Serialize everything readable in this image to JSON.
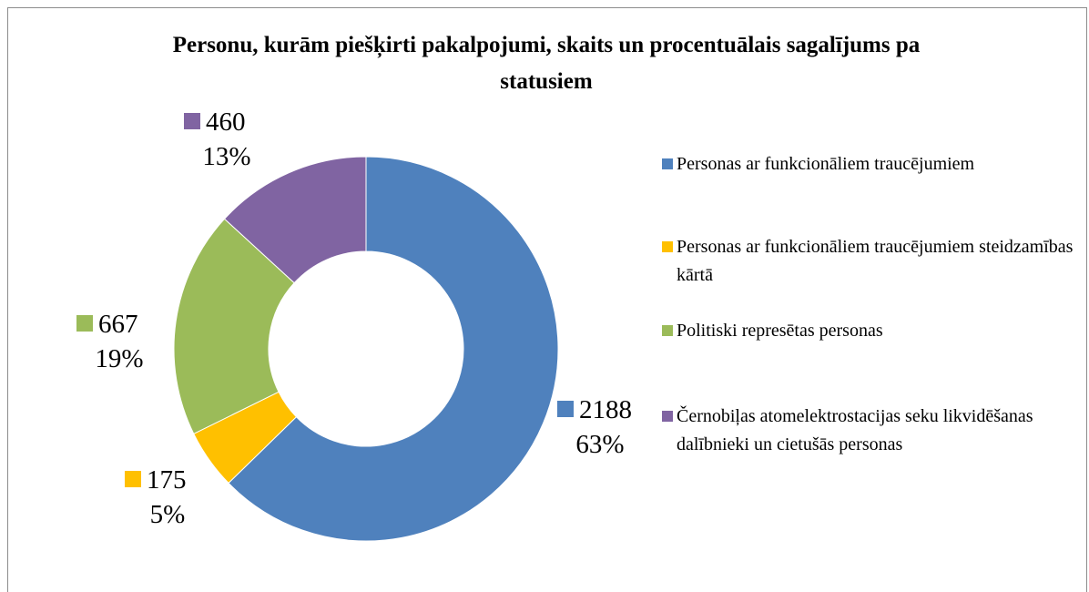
{
  "chart_data": {
    "type": "doughnut",
    "title": "Personu, kurām piešķirti pakalpojumi, skaits un procentuālais sagalījums pa statusiem",
    "categories": [
      "Personas ar funkcionāliem traucējumiem",
      "Personas ar funkcionāliem traucējumiem steidzamības kārtā",
      "Politiski represētas personas",
      "Černobiļas atomelektrostacijas seku likvidēšanas dalībnieki un cietušās personas"
    ],
    "values": [
      2188,
      175,
      667,
      460
    ],
    "percent_labels": [
      "63%",
      "5%",
      "19%",
      "13%"
    ],
    "colors": [
      "#4f81bd",
      "#ffc000",
      "#9bbb59",
      "#8064a2"
    ],
    "legend": "right"
  }
}
